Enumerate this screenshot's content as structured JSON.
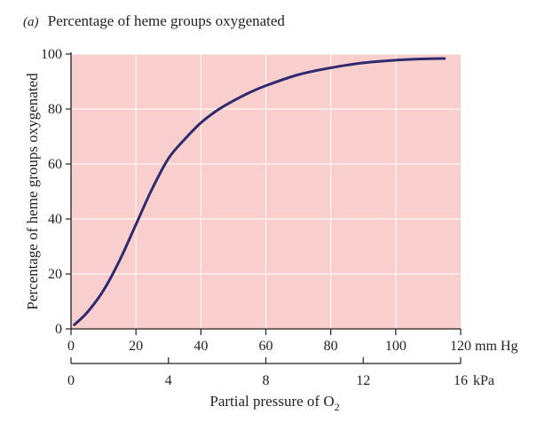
{
  "panel_label": "(a)",
  "title": "Percentage of heme groups oxygenated",
  "colors": {
    "plot_background": "#f9cfcd",
    "grid": "#ffffff",
    "curve": "#2e2a6e",
    "axis": "#231f20"
  },
  "chart_data": {
    "type": "line",
    "title": "Percentage of heme groups oxygenated",
    "ylabel": "Percentage of heme groups oxygenated",
    "xlabel": "Partial pressure of O",
    "xlabel_subscript": "2",
    "xlim": [
      0,
      120
    ],
    "ylim": [
      0,
      100
    ],
    "grid": true,
    "x_ticks": [
      0,
      20,
      40,
      60,
      80,
      100,
      120
    ],
    "x_tick_labels": [
      "0",
      "20",
      "40",
      "60",
      "80",
      "100",
      "120"
    ],
    "x_unit": "mm Hg",
    "y_ticks": [
      0,
      20,
      40,
      60,
      80,
      100
    ],
    "y_tick_labels": [
      "0",
      "20",
      "40",
      "60",
      "80",
      "100"
    ],
    "secondary_x_axis": {
      "ticks": [
        0,
        4,
        8,
        12,
        16
      ],
      "tick_labels": [
        "0",
        "4",
        "8",
        "12",
        "16"
      ],
      "unit": "kPa",
      "lim": [
        0,
        16
      ]
    },
    "series": [
      {
        "x": [
          1,
          5,
          10,
          15,
          20,
          25,
          30,
          35,
          40,
          45,
          50,
          55,
          60,
          70,
          80,
          90,
          100,
          110,
          115
        ],
        "y": [
          1.5,
          6,
          14,
          25,
          38,
          51,
          62,
          69,
          75,
          79.5,
          83,
          86,
          88.5,
          92.5,
          95,
          96.8,
          97.8,
          98.3,
          98.4
        ]
      }
    ]
  }
}
